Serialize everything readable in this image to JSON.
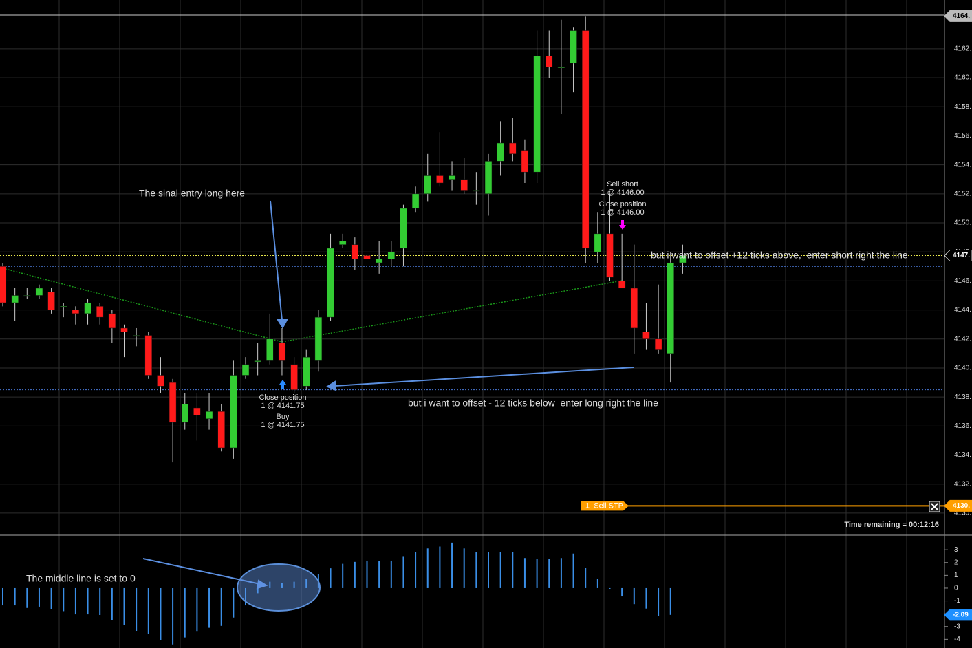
{
  "chart_data": [
    {
      "type": "candlestick",
      "up_color": "#33cc33",
      "down_color": "#ff1a1a",
      "open": [
        4147.0,
        4144.5,
        4145.0,
        4145.0,
        4145.25,
        4144.25,
        4144.0,
        4143.75,
        4144.25,
        4143.75,
        4142.75,
        4142.25,
        4142.25,
        4139.5,
        4139.0,
        4136.25,
        4137.25,
        4136.5,
        4137.0,
        4134.5,
        4139.5,
        4140.5,
        4140.5,
        4141.75,
        4140.25,
        4138.75,
        4140.5,
        4143.5,
        4148.5,
        4148.5,
        4147.75,
        4147.25,
        4147.5,
        4148.25,
        4151.0,
        4152.0,
        4153.25,
        4153.0,
        4153.0,
        4152.25,
        4152.0,
        4154.25,
        4155.5,
        4155.0,
        4153.5,
        4161.5,
        4160.75,
        4161.0,
        4163.25,
        4148.0,
        4149.25,
        4146.0,
        4145.5,
        4142.5,
        4142.0,
        4141.0,
        4147.25
      ],
      "high": [
        4147.25,
        4145.5,
        4145.5,
        4145.75,
        4145.5,
        4144.5,
        4144.25,
        4144.75,
        4144.5,
        4144.0,
        4143.0,
        4142.75,
        4142.5,
        4140.75,
        4139.25,
        4138.25,
        4138.25,
        4138.25,
        4137.5,
        4140.5,
        4140.75,
        4141.75,
        4143.75,
        4142.75,
        4140.75,
        4141.25,
        4144.0,
        4149.25,
        4149.25,
        4149.0,
        4148.5,
        4148.75,
        4148.75,
        4151.25,
        4152.5,
        4154.75,
        4156.25,
        4154.25,
        4154.5,
        4153.5,
        4154.75,
        4157.0,
        4157.25,
        4155.75,
        4163.25,
        4163.25,
        4164.0,
        4163.5,
        4164.25,
        4150.75,
        4152.0,
        4149.25,
        4148.5,
        4144.5,
        4145.75,
        4148.0,
        4148.5
      ],
      "low": [
        4144.25,
        4143.25,
        4144.75,
        4144.75,
        4143.75,
        4143.5,
        4143.0,
        4143.0,
        4143.0,
        4141.75,
        4140.75,
        4141.5,
        4139.25,
        4138.25,
        4133.5,
        4135.75,
        4135.0,
        4135.75,
        4134.25,
        4133.75,
        4139.25,
        4139.5,
        4140.25,
        4139.5,
        4138.25,
        4138.5,
        4139.75,
        4143.25,
        4148.25,
        4146.75,
        4146.25,
        4146.5,
        4147.0,
        4147.0,
        4150.75,
        4151.5,
        4152.5,
        4152.25,
        4152.0,
        4151.25,
        4150.5,
        4153.25,
        4154.25,
        4152.75,
        4152.75,
        4160.0,
        4157.5,
        4159.0,
        4147.25,
        4147.25,
        4146.0,
        4145.5,
        4141.0,
        4141.25,
        4141.0,
        4139.0,
        4146.5
      ],
      "close": [
        4144.5,
        4145.0,
        4145.0,
        4145.5,
        4144.0,
        4144.25,
        4143.75,
        4144.5,
        4143.5,
        4142.75,
        4142.5,
        4142.25,
        4139.5,
        4138.75,
        4136.25,
        4137.5,
        4136.75,
        4137.0,
        4134.5,
        4139.5,
        4140.25,
        4140.5,
        4142.0,
        4140.5,
        4138.5,
        4140.75,
        4143.5,
        4148.25,
        4148.75,
        4147.5,
        4147.5,
        4147.5,
        4148.0,
        4151.0,
        4152.0,
        4153.25,
        4152.75,
        4153.25,
        4152.25,
        4152.25,
        4154.25,
        4155.5,
        4154.75,
        4153.5,
        4161.5,
        4160.75,
        4160.75,
        4163.25,
        4148.25,
        4149.25,
        4146.25,
        4145.5,
        4142.75,
        4142.0,
        4141.25,
        4147.25,
        4147.75
      ],
      "ylim": [
        4128.48,
        4165.36
      ],
      "yticks": [
        {
          "value": 4130,
          "label": "4130."
        },
        {
          "value": 4132,
          "label": "4132."
        },
        {
          "value": 4134,
          "label": "4134."
        },
        {
          "value": 4136,
          "label": "4136."
        },
        {
          "value": 4138,
          "label": "4138."
        },
        {
          "value": 4140,
          "label": "4140."
        },
        {
          "value": 4142,
          "label": "4142."
        },
        {
          "value": 4144,
          "label": "4144."
        },
        {
          "value": 4146,
          "label": "4146."
        },
        {
          "value": 4148,
          "label": "4148."
        },
        {
          "value": 4150,
          "label": "4150."
        },
        {
          "value": 4152,
          "label": "4152."
        },
        {
          "value": 4154,
          "label": "4154."
        },
        {
          "value": 4156,
          "label": "4156."
        },
        {
          "value": 4158,
          "label": "4158."
        },
        {
          "value": 4160,
          "label": "4160."
        },
        {
          "value": 4162,
          "label": "4162."
        }
      ],
      "grid": true,
      "price_markers": [
        {
          "value": 4164.25,
          "label": "4164.",
          "color": "#bbbbbb"
        },
        {
          "value": 4147.75,
          "label": "4147.",
          "color": "#000000"
        },
        {
          "value": 4130.5,
          "label": "4130.",
          "color": "#ff9f00"
        }
      ],
      "levels": [
        {
          "value": 4147.75,
          "color": "#e6e64c"
        },
        {
          "value": 4147.0,
          "color": "#4a78d6"
        },
        {
          "value": 4138.5,
          "color": "#4a78d6"
        }
      ],
      "order": {
        "label": "1  Sell STP",
        "value": 4130.5,
        "color": "#ff9f00"
      },
      "annotations": [
        "The sinal entry long here",
        "Close position",
        "1 @ 4141.75",
        "Buy",
        "1 @ 4141.75",
        "Sell short",
        "1 @ 4146.00",
        "Close position",
        "1 @ 4146.00",
        "but i want to offset +12 ticks above,  enter short right the line",
        "but i want to offset - 12 ticks below  enter long right the line"
      ]
    },
    {
      "type": "bar",
      "color": "#3a8ee6",
      "values": [
        -1.35,
        -1.35,
        -1.55,
        -1.45,
        -1.65,
        -1.8,
        -2.05,
        -2.05,
        -2.1,
        -2.5,
        -2.9,
        -3.35,
        -3.6,
        -4.05,
        -4.4,
        -3.85,
        -3.4,
        -3.1,
        -2.95,
        -2.3,
        -1.35,
        -0.4,
        0.5,
        0.4,
        0.5,
        0.7,
        1.1,
        1.55,
        1.9,
        2.05,
        2.15,
        2.1,
        2.15,
        2.5,
        2.8,
        3.1,
        3.25,
        3.55,
        3.1,
        2.8,
        2.8,
        2.8,
        2.8,
        2.35,
        2.3,
        2.3,
        2.35,
        2.7,
        1.6,
        0.7,
        -0.05,
        -0.65,
        -1.25,
        -1.6,
        -2.2,
        -2.09,
        null
      ],
      "ylim": [
        -4.68,
        4.03
      ],
      "yticks": [
        3,
        2,
        1,
        0,
        -1,
        -2,
        -3,
        -4
      ],
      "price_markers": [
        {
          "value": -2.09,
          "label": "-2.09",
          "color": "#1e90ff"
        }
      ],
      "annotations": [
        "The middle line is set to 0"
      ]
    }
  ],
  "status": "Time remaining = 00:12:16"
}
